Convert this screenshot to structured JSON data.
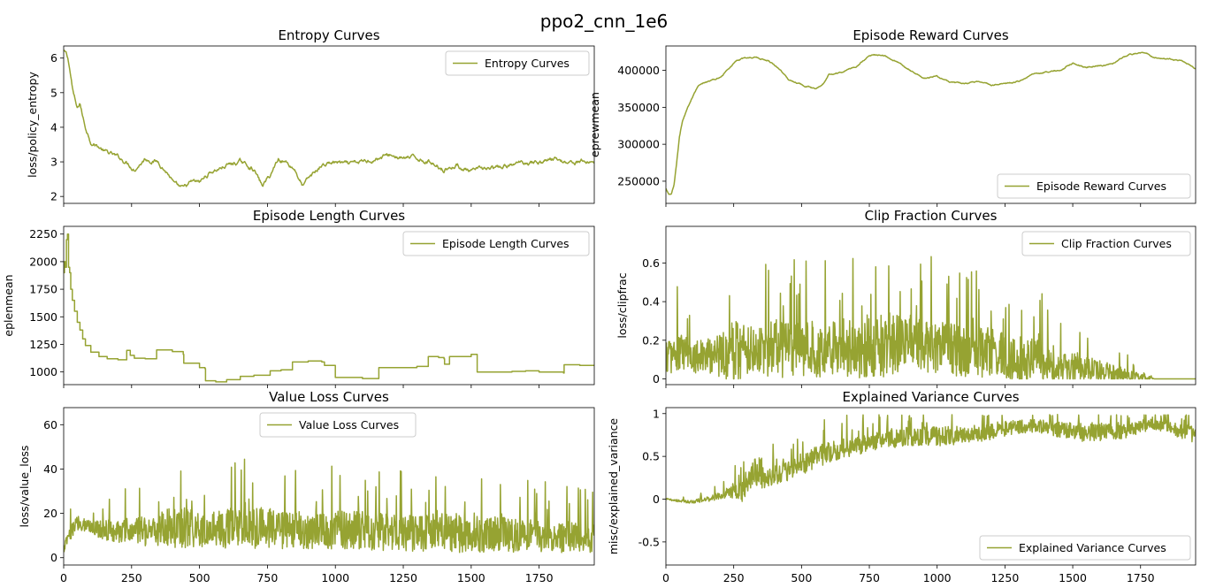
{
  "figure": {
    "title": "ppo2_cnn_1e6"
  },
  "line_color": "#96a332",
  "chart_data": [
    {
      "type": "line",
      "title": "Entropy Curves",
      "ylabel": "loss/policy_entropy",
      "xlim": [
        0,
        1953
      ],
      "ylim": [
        1.8,
        6.35
      ],
      "xticks": [],
      "yticks": [
        2,
        3,
        4,
        5,
        6
      ],
      "legend": "top-right",
      "series": [
        {
          "name": "Entropy Curves",
          "style": "smooth",
          "noise": 0.08,
          "x": [
            0,
            10,
            20,
            35,
            50,
            60,
            70,
            80,
            100,
            120,
            150,
            180,
            230,
            260,
            300,
            350,
            390,
            410,
            440,
            470,
            500,
            540,
            600,
            650,
            700,
            730,
            760,
            790,
            820,
            850,
            880,
            900,
            950,
            1000,
            1050,
            1100,
            1150,
            1200,
            1250,
            1300,
            1350,
            1400,
            1450,
            1500,
            1550,
            1600,
            1650,
            1700,
            1750,
            1800,
            1850,
            1900,
            1953
          ],
          "y": [
            6.2,
            6.1,
            5.8,
            5.0,
            4.5,
            4.7,
            4.3,
            4.0,
            3.6,
            3.5,
            3.3,
            3.2,
            3.0,
            2.8,
            3.1,
            3.0,
            2.6,
            2.3,
            2.2,
            2.4,
            2.4,
            2.7,
            2.9,
            3.0,
            2.8,
            2.3,
            2.6,
            3.1,
            3.0,
            2.8,
            2.3,
            2.5,
            2.9,
            3.0,
            2.9,
            3.0,
            3.1,
            3.2,
            3.1,
            3.1,
            3.0,
            2.8,
            2.9,
            2.7,
            2.8,
            2.8,
            2.9,
            3.0,
            3.0,
            3.1,
            3.0,
            3.0,
            3.0
          ]
        }
      ]
    },
    {
      "type": "line",
      "title": "Episode Reward Curves",
      "ylabel": "eprewmean",
      "xlim": [
        0,
        1953
      ],
      "ylim": [
        220000,
        433000
      ],
      "xticks": [],
      "yticks": [
        250000,
        300000,
        350000,
        400000
      ],
      "legend": "bottom-right",
      "series": [
        {
          "name": "Episode Reward Curves",
          "style": "smooth",
          "noise": 1200,
          "x": [
            0,
            10,
            20,
            30,
            40,
            50,
            60,
            80,
            100,
            120,
            150,
            200,
            230,
            260,
            300,
            330,
            380,
            420,
            450,
            500,
            550,
            580,
            600,
            650,
            700,
            750,
            800,
            850,
            900,
            950,
            1000,
            1050,
            1100,
            1150,
            1200,
            1250,
            1300,
            1350,
            1400,
            1450,
            1500,
            1550,
            1600,
            1650,
            1700,
            1750,
            1780,
            1800,
            1850,
            1900,
            1953
          ],
          "y": [
            240000,
            232000,
            231000,
            245000,
            275000,
            310000,
            330000,
            350000,
            365000,
            378000,
            384000,
            390000,
            403000,
            413000,
            417000,
            418000,
            413000,
            402000,
            388000,
            381000,
            375000,
            383000,
            395000,
            398000,
            405000,
            420000,
            422000,
            412000,
            400000,
            388000,
            392000,
            383000,
            382000,
            384000,
            380000,
            382000,
            385000,
            395000,
            398000,
            400000,
            410000,
            404000,
            406000,
            410000,
            420000,
            424000,
            422000,
            418000,
            416000,
            413000,
            403000
          ]
        }
      ]
    },
    {
      "type": "line",
      "title": "Episode Length Curves",
      "ylabel": "eplenmean",
      "xlim": [
        0,
        1953
      ],
      "ylim": [
        885,
        2320
      ],
      "xticks": [],
      "yticks": [
        1000,
        1250,
        1500,
        1750,
        2000,
        2250
      ],
      "legend": "top-right",
      "series": [
        {
          "name": "Episode Length Curves",
          "style": "step",
          "x": [
            0,
            3,
            6,
            10,
            14,
            18,
            22,
            26,
            32,
            40,
            50,
            60,
            70,
            80,
            100,
            130,
            160,
            200,
            230,
            232,
            245,
            260,
            300,
            340,
            342,
            400,
            440,
            442,
            500,
            520,
            522,
            560,
            600,
            650,
            700,
            760,
            800,
            840,
            842,
            900,
            950,
            960,
            1000,
            1100,
            1150,
            1160,
            1250,
            1300,
            1340,
            1342,
            1380,
            1400,
            1402,
            1420,
            1500,
            1520,
            1522,
            1600,
            1650,
            1700,
            1750,
            1840,
            1842,
            1900,
            1953
          ],
          "y": [
            1900,
            2000,
            1950,
            2200,
            2250,
            1950,
            1900,
            1750,
            1650,
            1550,
            1450,
            1380,
            1300,
            1240,
            1180,
            1140,
            1120,
            1110,
            1110,
            1195,
            1150,
            1125,
            1120,
            1120,
            1200,
            1185,
            1160,
            1080,
            1040,
            1030,
            920,
            910,
            930,
            960,
            970,
            1010,
            1020,
            1020,
            1090,
            1100,
            1090,
            1060,
            950,
            940,
            940,
            1040,
            1040,
            1050,
            1050,
            1140,
            1130,
            1120,
            1070,
            1140,
            1160,
            1160,
            1000,
            1000,
            1005,
            1010,
            1000,
            990,
            1065,
            1060,
            1055
          ]
        }
      ]
    },
    {
      "type": "line",
      "title": "Clip Fraction Curves",
      "ylabel": "loss/clipfrac",
      "xlim": [
        0,
        1953
      ],
      "ylim": [
        -0.03,
        0.79
      ],
      "xticks": [],
      "yticks": [
        0.0,
        0.2,
        0.4,
        0.6
      ],
      "legend": "top-right",
      "series": [
        {
          "name": "Clip Fraction Curves",
          "style": "noisy",
          "x": [
            0,
            50,
            100,
            150,
            200,
            250,
            300,
            350,
            400,
            450,
            500,
            550,
            600,
            650,
            700,
            750,
            800,
            850,
            900,
            950,
            1000,
            1050,
            1100,
            1150,
            1200,
            1250,
            1300,
            1350,
            1400,
            1450,
            1500,
            1550,
            1600,
            1650,
            1700,
            1750,
            1790,
            1800,
            1850,
            1900,
            1953
          ],
          "y": [
            0.12,
            0.14,
            0.13,
            0.12,
            0.13,
            0.15,
            0.16,
            0.16,
            0.17,
            0.16,
            0.17,
            0.16,
            0.17,
            0.18,
            0.17,
            0.18,
            0.19,
            0.2,
            0.19,
            0.18,
            0.17,
            0.16,
            0.15,
            0.15,
            0.14,
            0.12,
            0.11,
            0.1,
            0.09,
            0.08,
            0.07,
            0.06,
            0.04,
            0.03,
            0.02,
            0.01,
            0.004,
            0.0,
            0.0,
            0.0,
            0.0
          ],
          "spread": [
            0.14,
            0.16,
            0.14,
            0.14,
            0.17,
            0.27,
            0.19,
            0.19,
            0.24,
            0.22,
            0.22,
            0.22,
            0.22,
            0.24,
            0.23,
            0.27,
            0.26,
            0.24,
            0.23,
            0.22,
            0.2,
            0.21,
            0.21,
            0.2,
            0.2,
            0.19,
            0.18,
            0.18,
            0.16,
            0.14,
            0.12,
            0.1,
            0.09,
            0.07,
            0.05,
            0.03,
            0.01,
            0.0,
            0.0,
            0.0,
            0.0
          ]
        }
      ]
    },
    {
      "type": "line",
      "title": "Value Loss Curves",
      "ylabel": "loss/value_loss",
      "xlim": [
        0,
        1953
      ],
      "ylim": [
        -3.3,
        67.7
      ],
      "xticks": [
        0,
        250,
        500,
        750,
        1000,
        1250,
        1500,
        1750
      ],
      "yticks": [
        0,
        20,
        40,
        60
      ],
      "legend": "top-center",
      "series": [
        {
          "name": "Value Loss Curves",
          "style": "noisy",
          "x": [
            0,
            20,
            50,
            80,
            100,
            150,
            200,
            250,
            300,
            350,
            400,
            450,
            500,
            550,
            600,
            650,
            700,
            750,
            800,
            850,
            900,
            950,
            1000,
            1050,
            1100,
            1150,
            1200,
            1250,
            1300,
            1350,
            1400,
            1450,
            1500,
            1550,
            1600,
            1650,
            1700,
            1750,
            1800,
            1850,
            1900,
            1953
          ],
          "y": [
            4,
            10,
            16,
            15,
            14,
            13,
            12,
            12,
            13,
            13,
            14,
            14,
            14,
            13,
            14,
            14,
            14,
            14,
            13,
            13,
            13,
            13,
            13,
            13,
            13,
            12,
            12,
            12,
            12,
            12,
            12,
            12,
            12,
            11,
            11,
            11,
            10,
            10,
            10,
            10,
            10,
            9
          ],
          "spread": [
            3,
            5,
            5,
            5,
            5,
            7,
            8,
            10,
            11,
            13,
            14,
            14,
            13,
            13,
            14,
            14,
            14,
            14,
            14,
            13,
            13,
            13,
            13,
            13,
            13,
            13,
            13,
            13,
            13,
            13,
            13,
            14,
            14,
            13,
            12,
            12,
            12,
            11,
            11,
            11,
            10,
            10
          ]
        }
      ]
    },
    {
      "type": "line",
      "title": "Explained Variance Curves",
      "ylabel": "misc/explained_variance",
      "xlim": [
        0,
        1953
      ],
      "ylim": [
        -0.77,
        1.07
      ],
      "xticks": [
        0,
        250,
        500,
        750,
        1000,
        1250,
        1500,
        1750
      ],
      "yticks": [
        -0.5,
        0.0,
        0.5,
        1.0
      ],
      "legend": "bottom-right",
      "series": [
        {
          "name": "Explained Variance Curves",
          "style": "noisy",
          "x": [
            0,
            50,
            100,
            150,
            200,
            250,
            280,
            300,
            330,
            350,
            400,
            450,
            500,
            550,
            600,
            650,
            700,
            750,
            800,
            850,
            900,
            950,
            1000,
            1050,
            1100,
            1150,
            1200,
            1250,
            1300,
            1350,
            1400,
            1450,
            1500,
            1550,
            1600,
            1650,
            1700,
            1750,
            1800,
            1850,
            1900,
            1953
          ],
          "y": [
            0.0,
            -0.02,
            -0.03,
            0.0,
            0.05,
            0.1,
            0.1,
            0.18,
            0.35,
            0.22,
            0.28,
            0.34,
            0.42,
            0.5,
            0.55,
            0.6,
            0.62,
            0.66,
            0.7,
            0.72,
            0.74,
            0.75,
            0.74,
            0.75,
            0.77,
            0.78,
            0.8,
            0.83,
            0.85,
            0.86,
            0.85,
            0.82,
            0.8,
            0.78,
            0.78,
            0.8,
            0.8,
            0.85,
            0.88,
            0.86,
            0.8,
            0.75
          ],
          "spread": [
            0.01,
            0.02,
            0.03,
            0.05,
            0.07,
            0.12,
            0.2,
            0.15,
            0.25,
            0.15,
            0.17,
            0.18,
            0.2,
            0.2,
            0.18,
            0.17,
            0.16,
            0.16,
            0.16,
            0.17,
            0.17,
            0.17,
            0.17,
            0.17,
            0.16,
            0.16,
            0.15,
            0.14,
            0.12,
            0.12,
            0.12,
            0.14,
            0.16,
            0.16,
            0.15,
            0.14,
            0.13,
            0.11,
            0.1,
            0.12,
            0.14,
            0.15
          ]
        }
      ]
    }
  ]
}
